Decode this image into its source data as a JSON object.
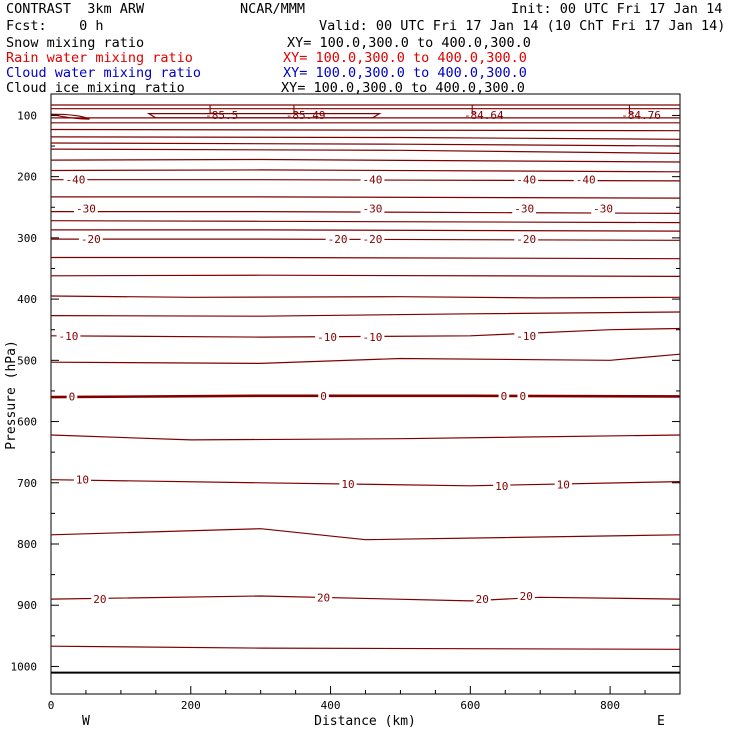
{
  "header": {
    "model": "CONTRAST  3km ARW",
    "org": "NCAR/MMM",
    "init": "Init: 00 UTC Fri 17 Jan 14",
    "fcst": "Fcst:    0 h",
    "valid": "Valid: 00 UTC Fri 17 Jan 14 (10 ChT Fri 17 Jan 14)"
  },
  "legend": [
    {
      "label": "Snow mixing ratio",
      "xy": "XY= 100.0,300.0 to 400.0,300.0",
      "color": "#000000"
    },
    {
      "label": "Rain water mixing ratio",
      "xy": "XY= 100.0,300.0 to 400.0,300.0",
      "color": "#e00000"
    },
    {
      "label": "Cloud water mixing ratio",
      "xy": "XY= 100.0,300.0 to 400.0,300.0",
      "color": "#0000c8"
    },
    {
      "label": "Cloud ice mixing ratio",
      "xy": "XY= 100.0,300.0 to 400.0,300.0",
      "color": "#000000"
    }
  ],
  "chart_data": {
    "type": "line",
    "title": "",
    "xlabel": "Distance (km)",
    "ylabel": "Pressure (hPa)",
    "xlim": [
      0,
      900
    ],
    "ylim": [
      1045,
      65
    ],
    "x_ticks": [
      0,
      200,
      400,
      600,
      800
    ],
    "y_ticks": [
      100,
      200,
      300,
      400,
      500,
      600,
      700,
      800,
      900,
      1000
    ],
    "x_end_labels": {
      "left": "W",
      "right": "E"
    },
    "grid": false,
    "contour_color": "#800000",
    "ground_pressure": 1010,
    "contour_interval_c": 5,
    "lows": [
      {
        "x": 230,
        "value": "-85.5"
      },
      {
        "x": 350,
        "value": "-85.49"
      },
      {
        "x": 605,
        "value": "-84.64"
      },
      {
        "x": 830,
        "value": "-84.76"
      }
    ],
    "isotherms": [
      {
        "x": [
          0,
          900
        ],
        "p": [
          83,
          83
        ]
      },
      {
        "x": [
          0,
          160,
          900
        ],
        "p": [
          89,
          89,
          89
        ]
      },
      {
        "x": [
          0,
          300,
          900
        ],
        "p": [
          104,
          104,
          104
        ]
      },
      {
        "x": [
          0,
          300,
          900
        ],
        "p": [
          112,
          112,
          112
        ]
      },
      {
        "x": [
          0,
          900
        ],
        "p": [
          123,
          125
        ]
      },
      {
        "x": [
          0,
          500,
          900
        ],
        "p": [
          135,
          136,
          139
        ]
      },
      {
        "x": [
          0,
          500,
          900
        ],
        "p": [
          145,
          147,
          150
        ]
      },
      {
        "x": [
          0,
          500,
          900
        ],
        "p": [
          155,
          157,
          162
        ]
      },
      {
        "x": [
          0,
          300,
          900
        ],
        "p": [
          173,
          172,
          176
        ]
      },
      {
        "x": [
          0,
          300,
          900
        ],
        "p": [
          190,
          189,
          192
        ]
      },
      {
        "x": [
          0,
          300,
          900
        ],
        "p": [
          205,
          205,
          207
        ]
      },
      {
        "x": [
          0,
          300,
          900
        ],
        "p": [
          233,
          233,
          235
        ]
      },
      {
        "x": [
          0,
          300,
          900
        ],
        "p": [
          257,
          257,
          260
        ]
      },
      {
        "x": [
          0,
          300,
          900
        ],
        "p": [
          272,
          273,
          275
        ]
      },
      {
        "x": [
          0,
          300,
          900
        ],
        "p": [
          287,
          287,
          289
        ]
      },
      {
        "x": [
          0,
          300,
          900
        ],
        "p": [
          302,
          302,
          304
        ]
      },
      {
        "x": [
          0,
          300,
          900
        ],
        "p": [
          332,
          332,
          334
        ]
      },
      {
        "x": [
          0,
          300,
          900
        ],
        "p": [
          362,
          361,
          363
        ]
      },
      {
        "x": [
          0,
          200,
          500,
          700,
          900
        ],
        "p": [
          395,
          397,
          396,
          398,
          397
        ]
      },
      {
        "x": [
          0,
          300,
          600,
          900
        ],
        "p": [
          427,
          428,
          424,
          421
        ]
      },
      {
        "x": [
          0,
          300,
          600,
          800,
          900
        ],
        "p": [
          460,
          462,
          460,
          450,
          448
        ]
      },
      {
        "x": [
          0,
          300,
          500,
          800,
          900
        ],
        "p": [
          503,
          505,
          497,
          500,
          490
        ]
      },
      {
        "x": [
          0,
          300,
          600,
          900
        ],
        "p": [
          560,
          558,
          558,
          559
        ]
      },
      {
        "x": [
          0,
          200,
          500,
          900
        ],
        "p": [
          622,
          630,
          628,
          622
        ]
      },
      {
        "x": [
          0,
          300,
          600,
          900
        ],
        "p": [
          695,
          700,
          705,
          698
        ]
      },
      {
        "x": [
          0,
          300,
          450,
          900
        ],
        "p": [
          785,
          775,
          793,
          785
        ]
      },
      {
        "x": [
          0,
          300,
          600,
          700,
          900
        ],
        "p": [
          890,
          885,
          893,
          887,
          890
        ]
      },
      {
        "x": [
          0,
          300,
          900
        ],
        "p": [
          967,
          970,
          972
        ]
      }
    ],
    "bold_isotherm": {
      "x": [
        0,
        300,
        600,
        900
      ],
      "p": [
        560,
        558,
        558,
        559
      ],
      "value": "0"
    },
    "contour_labels": [
      {
        "x": 35,
        "p": 205,
        "text": "-40"
      },
      {
        "x": 460,
        "p": 205,
        "text": "-40"
      },
      {
        "x": 680,
        "p": 205,
        "text": "-40"
      },
      {
        "x": 765,
        "p": 205,
        "text": "-40"
      },
      {
        "x": 50,
        "p": 252,
        "text": "-30"
      },
      {
        "x": 460,
        "p": 252,
        "text": "-30"
      },
      {
        "x": 677,
        "p": 252,
        "text": "-30"
      },
      {
        "x": 790,
        "p": 252,
        "text": "-30"
      },
      {
        "x": 57,
        "p": 302,
        "text": "-20"
      },
      {
        "x": 410,
        "p": 302,
        "text": "-20"
      },
      {
        "x": 460,
        "p": 302,
        "text": "-20"
      },
      {
        "x": 680,
        "p": 302,
        "text": "-20"
      },
      {
        "x": 25,
        "p": 460,
        "text": "-10"
      },
      {
        "x": 395,
        "p": 462,
        "text": "-10"
      },
      {
        "x": 460,
        "p": 462,
        "text": "-10"
      },
      {
        "x": 680,
        "p": 460,
        "text": "-10"
      },
      {
        "x": 30,
        "p": 559,
        "text": "0"
      },
      {
        "x": 390,
        "p": 558,
        "text": "0"
      },
      {
        "x": 648,
        "p": 558,
        "text": "0"
      },
      {
        "x": 675,
        "p": 558,
        "text": "0"
      },
      {
        "x": 45,
        "p": 695,
        "text": "10"
      },
      {
        "x": 425,
        "p": 702,
        "text": "10"
      },
      {
        "x": 645,
        "p": 705,
        "text": "10"
      },
      {
        "x": 733,
        "p": 703,
        "text": "10"
      },
      {
        "x": 70,
        "p": 890,
        "text": "20"
      },
      {
        "x": 390,
        "p": 887,
        "text": "20"
      },
      {
        "x": 617,
        "p": 890,
        "text": "20"
      },
      {
        "x": 680,
        "p": 885,
        "text": "20"
      }
    ]
  }
}
